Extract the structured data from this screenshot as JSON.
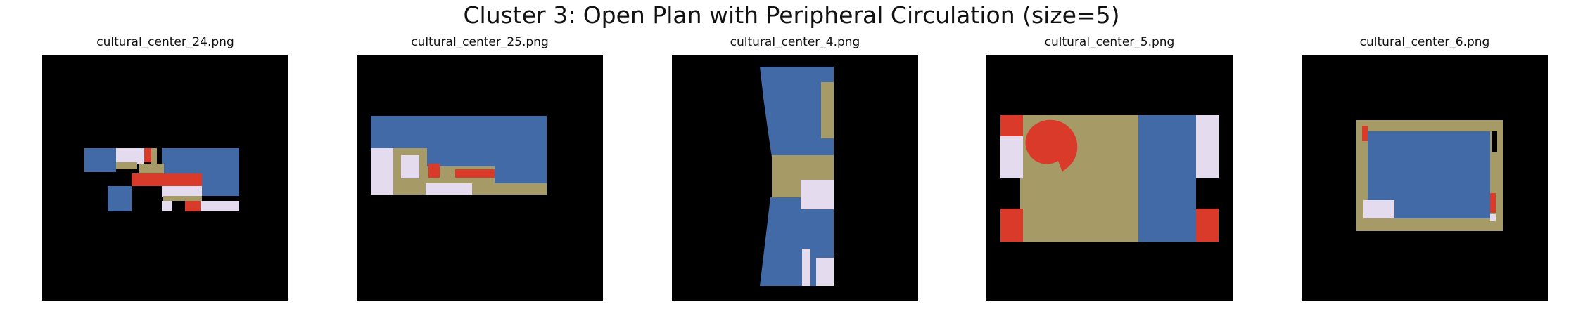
{
  "figure": {
    "title": "Cluster 3: Open Plan with Peripheral Circulation (size=5)"
  },
  "colors": {
    "background": "#000000",
    "blue": "#416aa6",
    "lavender": "#e5dbee",
    "khaki": "#a69a67",
    "red": "#d93a29"
  },
  "panels": [
    {
      "title": "cultural_center_24.png"
    },
    {
      "title": "cultural_center_25.png"
    },
    {
      "title": "cultural_center_4.png"
    },
    {
      "title": "cultural_center_5.png"
    },
    {
      "title": "cultural_center_6.png"
    }
  ]
}
